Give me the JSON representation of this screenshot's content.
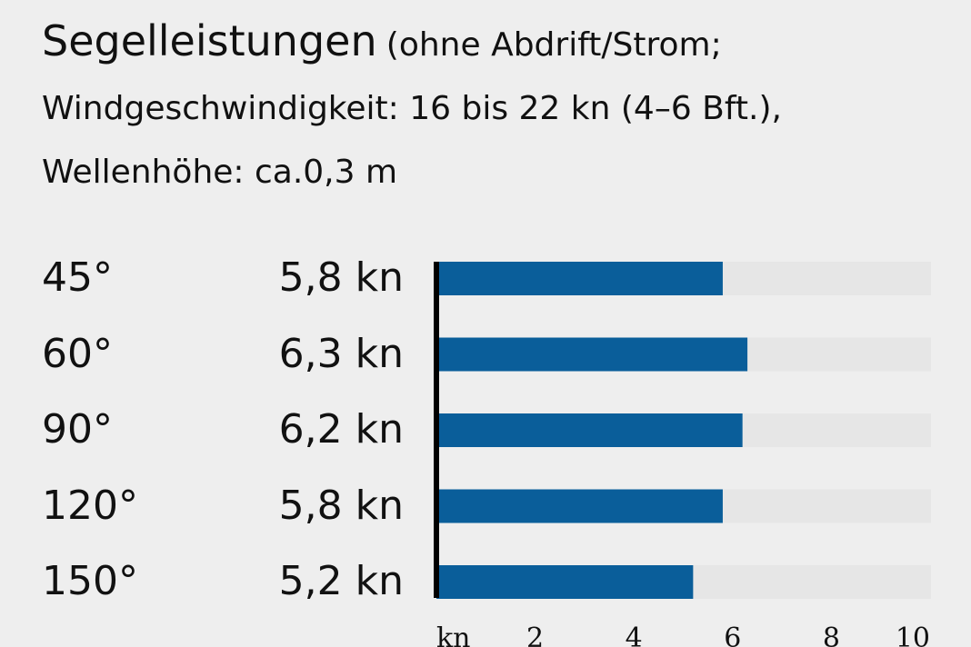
{
  "chart_data": {
    "type": "bar",
    "orientation": "horizontal",
    "title": "Segelleistungen",
    "subtitle": "(ohne Abdrift/Strom; Windgeschwindigkeit: 16 bis 22 kn (4–6 Bft.), Wellenhöhe: ca.0,3 m",
    "categories": [
      "45°",
      "60°",
      "90°",
      "120°",
      "150°"
    ],
    "values": [
      5.8,
      6.3,
      6.2,
      5.8,
      5.2
    ],
    "value_labels": [
      "5,8 kn",
      "6,3 kn",
      "6,2 kn",
      "5,8 kn",
      "5,2 kn"
    ],
    "xlim": [
      0,
      10
    ],
    "x_ticks": [
      2,
      4,
      6,
      8,
      10
    ],
    "x_unit_label": "kn",
    "grid": false,
    "colors": {
      "bar": "#0a5e9a",
      "track": "#e6e6e6",
      "background": "#eeeeee",
      "axis": "#000000"
    }
  }
}
